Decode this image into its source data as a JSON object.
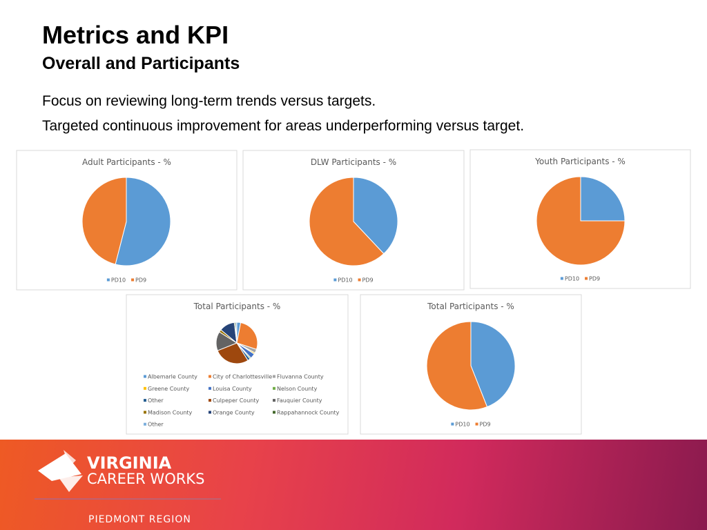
{
  "slide": {
    "title": "Metrics and KPI",
    "subtitle": "Overall and Participants",
    "bullets": [
      "Focus on reviewing long-term trends versus targets.",
      "Targeted continuous improvement for areas underperforming versus target."
    ],
    "logo": {
      "line1": "VIRGINIA",
      "line2": "CAREER WORKS",
      "region": "PIEDMONT REGION"
    }
  },
  "chart_data": [
    {
      "type": "pie",
      "title": "Adult Participants - %",
      "categories": [
        "PD10",
        "PD9"
      ],
      "values": [
        54,
        46
      ],
      "colors": [
        "#5b9bd5",
        "#ed7d31"
      ],
      "legend": "bottom"
    },
    {
      "type": "pie",
      "title": "DLW Participants - %",
      "categories": [
        "PD10",
        "PD9"
      ],
      "values": [
        38,
        62
      ],
      "colors": [
        "#5b9bd5",
        "#ed7d31"
      ],
      "legend": "bottom"
    },
    {
      "type": "pie",
      "title": "Youth Participants - %",
      "categories": [
        "PD10",
        "PD9"
      ],
      "values": [
        25,
        75
      ],
      "colors": [
        "#5b9bd5",
        "#ed7d31"
      ],
      "legend": "bottom"
    },
    {
      "type": "pie",
      "title": "Total Participants - %",
      "categories": [
        "Albemarle County",
        "City of Charlottesville",
        "Fluvanna County",
        "Greene County",
        "Louisa County",
        "Nelson County",
        "Other",
        "Culpeper County",
        "Fauquier County",
        "Madison County",
        "Orange County",
        "Rappahannock County",
        "Other"
      ],
      "values": [
        3,
        27,
        3,
        1,
        4,
        1,
        2,
        28,
        15,
        2,
        12,
        1,
        1
      ],
      "colors": [
        "#5b9bd5",
        "#ed7d31",
        "#a5a5a5",
        "#ffc000",
        "#4472c4",
        "#70ad47",
        "#255e91",
        "#9e480e",
        "#636363",
        "#997300",
        "#264478",
        "#43682b",
        "#7cafdd"
      ],
      "legend": "bottom"
    },
    {
      "type": "pie",
      "title": "Total Participants - %",
      "categories": [
        "PD10",
        "PD9"
      ],
      "values": [
        44,
        56
      ],
      "colors": [
        "#5b9bd5",
        "#ed7d31"
      ],
      "legend": "bottom"
    }
  ]
}
